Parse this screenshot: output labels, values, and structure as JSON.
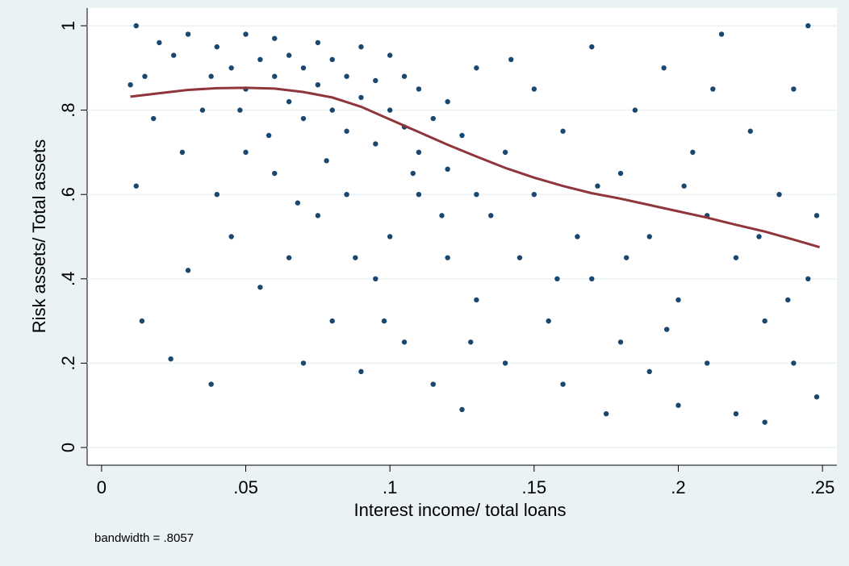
{
  "chart_data": {
    "type": "scatter",
    "xlabel": "Interest income/ total loans",
    "ylabel": "Risk assets/ Total assets",
    "note": "bandwidth = .8057",
    "xlim": [
      -0.005,
      0.255
    ],
    "ylim": [
      -0.042,
      1.042
    ],
    "xticks": [
      0,
      {
        "value": 0.05,
        "label": ".05"
      },
      {
        "value": 0.1,
        "label": ".1"
      },
      {
        "value": 0.15,
        "label": ".15"
      },
      {
        "value": 0.2,
        "label": ".2"
      },
      {
        "value": 0.25,
        "label": ".25"
      }
    ],
    "yticks": [
      0,
      {
        "value": 0.2,
        "label": ".2"
      },
      {
        "value": 0.4,
        "label": ".4"
      },
      {
        "value": 0.6,
        "label": ".6"
      },
      {
        "value": 0.8,
        "label": ".8"
      },
      1
    ],
    "grid": true,
    "series": [
      {
        "kind": "scatter",
        "color": "#1a476f",
        "x": [
          0.04,
          0.045,
          0.05,
          0.05,
          0.055,
          0.06,
          0.06,
          0.065,
          0.065,
          0.07,
          0.07,
          0.075,
          0.075,
          0.08,
          0.08,
          0.085,
          0.085,
          0.09,
          0.09,
          0.095,
          0.095,
          0.1,
          0.1,
          0.105,
          0.105,
          0.11,
          0.11,
          0.115,
          0.12,
          0.12,
          0.125,
          0.13,
          0.13,
          0.035,
          0.03,
          0.025,
          0.02,
          0.015,
          0.012,
          0.01,
          0.012,
          0.014,
          0.024,
          0.03,
          0.038,
          0.04,
          0.045,
          0.05,
          0.055,
          0.06,
          0.065,
          0.07,
          0.075,
          0.08,
          0.085,
          0.09,
          0.095,
          0.1,
          0.105,
          0.11,
          0.115,
          0.12,
          0.125,
          0.13,
          0.135,
          0.14,
          0.14,
          0.145,
          0.15,
          0.15,
          0.155,
          0.16,
          0.16,
          0.165,
          0.17,
          0.17,
          0.175,
          0.18,
          0.18,
          0.185,
          0.19,
          0.19,
          0.195,
          0.2,
          0.2,
          0.205,
          0.21,
          0.21,
          0.215,
          0.22,
          0.22,
          0.225,
          0.23,
          0.23,
          0.235,
          0.24,
          0.24,
          0.245,
          0.245,
          0.248,
          0.248,
          0.172,
          0.158,
          0.142,
          0.128,
          0.118,
          0.108,
          0.098,
          0.088,
          0.078,
          0.068,
          0.058,
          0.048,
          0.038,
          0.028,
          0.018,
          0.202,
          0.212,
          0.228,
          0.238,
          0.182,
          0.196
        ],
        "values": [
          0.95,
          0.9,
          0.98,
          0.85,
          0.92,
          0.88,
          0.97,
          0.82,
          0.93,
          0.9,
          0.78,
          0.86,
          0.96,
          0.8,
          0.92,
          0.75,
          0.88,
          0.83,
          0.95,
          0.72,
          0.87,
          0.8,
          0.93,
          0.76,
          0.88,
          0.7,
          0.85,
          0.78,
          0.66,
          0.82,
          0.74,
          0.6,
          0.9,
          0.8,
          0.98,
          0.93,
          0.96,
          0.88,
          1.0,
          0.86,
          0.62,
          0.3,
          0.21,
          0.42,
          0.15,
          0.6,
          0.5,
          0.7,
          0.38,
          0.65,
          0.45,
          0.2,
          0.55,
          0.3,
          0.6,
          0.18,
          0.4,
          0.5,
          0.25,
          0.6,
          0.15,
          0.45,
          0.09,
          0.35,
          0.55,
          0.7,
          0.2,
          0.45,
          0.85,
          0.6,
          0.3,
          0.75,
          0.15,
          0.5,
          0.95,
          0.4,
          0.08,
          0.65,
          0.25,
          0.8,
          0.5,
          0.18,
          0.9,
          0.35,
          0.1,
          0.7,
          0.55,
          0.2,
          0.98,
          0.45,
          0.08,
          0.75,
          0.3,
          0.06,
          0.6,
          0.85,
          0.2,
          1.0,
          0.4,
          0.55,
          0.12,
          0.62,
          0.4,
          0.92,
          0.25,
          0.55,
          0.65,
          0.3,
          0.45,
          0.68,
          0.58,
          0.74,
          0.8,
          0.88,
          0.7,
          0.78,
          0.62,
          0.85,
          0.5,
          0.35,
          0.45,
          0.28
        ]
      },
      {
        "kind": "line",
        "color": "#90353b",
        "x": [
          0.01,
          0.02,
          0.03,
          0.04,
          0.05,
          0.06,
          0.07,
          0.08,
          0.09,
          0.1,
          0.11,
          0.12,
          0.13,
          0.14,
          0.15,
          0.16,
          0.17,
          0.18,
          0.19,
          0.2,
          0.21,
          0.22,
          0.23,
          0.24,
          0.249
        ],
        "values": [
          0.832,
          0.84,
          0.848,
          0.852,
          0.853,
          0.851,
          0.843,
          0.83,
          0.808,
          0.778,
          0.748,
          0.718,
          0.69,
          0.663,
          0.64,
          0.62,
          0.603,
          0.59,
          0.575,
          0.56,
          0.545,
          0.528,
          0.512,
          0.493,
          0.475
        ]
      }
    ]
  }
}
